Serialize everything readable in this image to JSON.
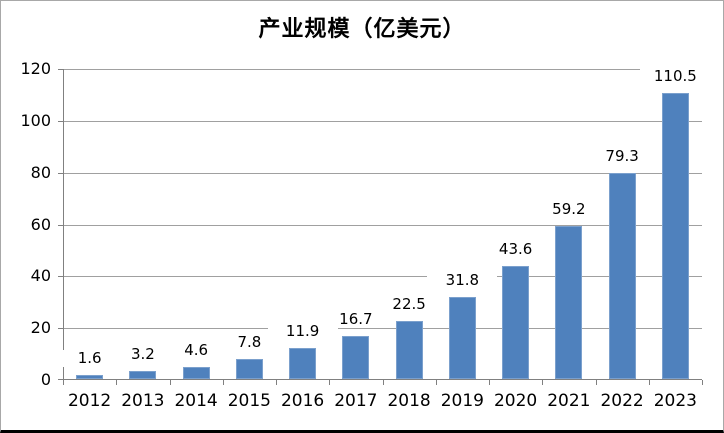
{
  "title": "产业规模（亿美元）",
  "chart_data": {
    "type": "bar",
    "title": "产业规模（亿美元）",
    "categories": [
      "2012",
      "2013",
      "2014",
      "2015",
      "2016",
      "2017",
      "2018",
      "2019",
      "2020",
      "2021",
      "2022",
      "2023"
    ],
    "values": [
      1.6,
      3.2,
      4.6,
      7.8,
      11.9,
      16.7,
      22.5,
      31.8,
      43.6,
      59.2,
      79.3,
      110.5
    ],
    "data_labels": [
      "1.6",
      "3.2",
      "4.6",
      "7.8",
      "11.9",
      "16.7",
      "22.5",
      "31.8",
      "43.6",
      "59.2",
      "79.3",
      "110.5"
    ],
    "xlabel": "",
    "ylabel": "",
    "ylim": [
      0,
      120
    ],
    "yticks": [
      0,
      20,
      40,
      60,
      80,
      100,
      120
    ],
    "grid": true,
    "legend": "none",
    "bar_color": "#4f81bd",
    "bar_border_color": "#7ba0cd",
    "gridline_color": "#a0a0a0",
    "axis_color": "#808080",
    "frame_border_color": "#a8a8a8",
    "bottom_rule_color": "#000000"
  }
}
